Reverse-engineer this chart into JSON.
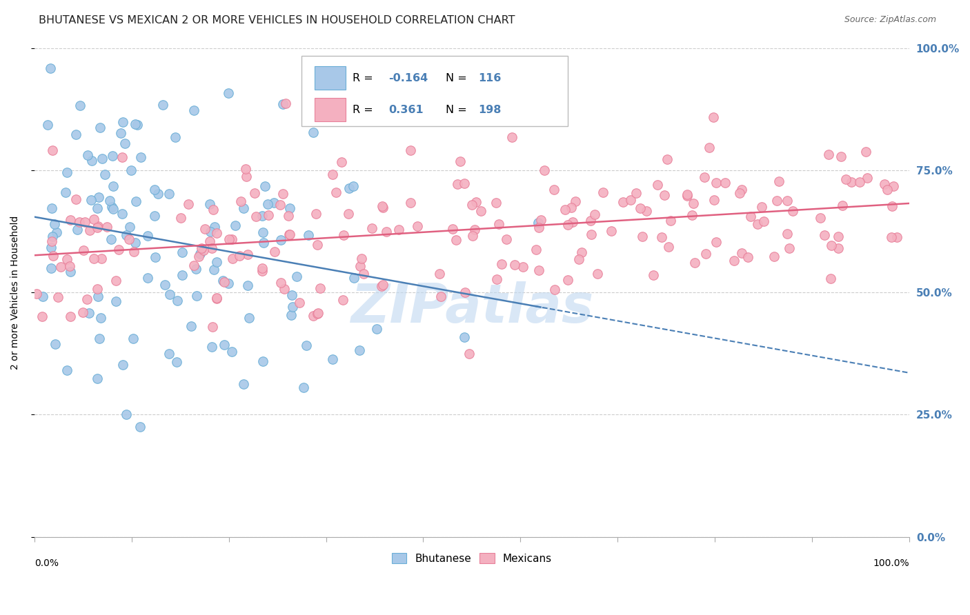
{
  "title": "BHUTANESE VS MEXICAN 2 OR MORE VEHICLES IN HOUSEHOLD CORRELATION CHART",
  "source": "Source: ZipAtlas.com",
  "ylabel": "2 or more Vehicles in Household",
  "ytick_labels": [
    "0.0%",
    "25.0%",
    "50.0%",
    "75.0%",
    "100.0%"
  ],
  "ytick_values": [
    0.0,
    0.25,
    0.5,
    0.75,
    1.0
  ],
  "bhutanese_face_color": "#a8c8e8",
  "bhutanese_edge_color": "#6aaed6",
  "mexican_face_color": "#f4b0c0",
  "mexican_edge_color": "#e8809a",
  "bhutanese_line_color": "#4a7fb5",
  "mexican_line_color": "#e06080",
  "R_bhutanese": -0.164,
  "R_mexican": 0.361,
  "N_bhutanese": 116,
  "N_mexican": 198,
  "xlim": [
    0.0,
    1.0
  ],
  "ylim": [
    0.0,
    1.0
  ],
  "watermark": "ZIPatlas",
  "watermark_color": "#c0d8f0",
  "background_color": "#ffffff",
  "grid_color": "#cccccc",
  "title_color": "#222222",
  "right_axis_color": "#4a7fb5",
  "title_fontsize": 11.5,
  "source_fontsize": 9,
  "label_fontsize": 10,
  "legend_blue_color": "#4a7fb5",
  "legend_entry_1_R": "-0.164",
  "legend_entry_1_N": "116",
  "legend_entry_2_R": "0.361",
  "legend_entry_2_N": "198"
}
